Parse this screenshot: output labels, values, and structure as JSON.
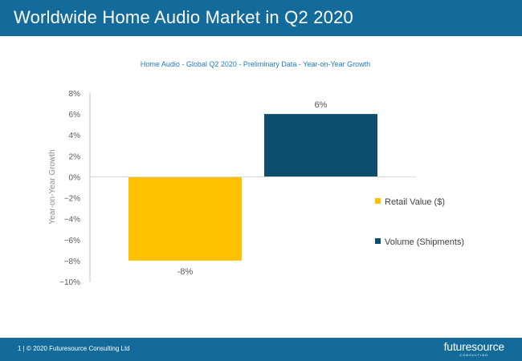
{
  "slide": {
    "title": "Worldwide Home Audio Market in Q2 2020",
    "footer_text": "1  |  © 2020 Futuresource Consulting Ltd",
    "logo_text": "futuresource",
    "logo_sub": "CONSULTING"
  },
  "colors": {
    "header": "#136b9b",
    "retail": "#ffc000",
    "volume": "#0d4e6f",
    "axis_text": "#595959",
    "subtitle": "#1f7bc0"
  },
  "chart_data": {
    "type": "bar",
    "title": "Home Audio - Global Q2 2020 - Preliminary Data - Year-on-Year Growth",
    "ylabel": "Year-on-Year Growth",
    "xlabel": "",
    "ylim": [
      -10,
      8
    ],
    "yticks": [
      8,
      6,
      4,
      2,
      0,
      -2,
      -4,
      -6,
      -8,
      -10
    ],
    "ytick_labels": [
      "8%",
      "6%",
      "4%",
      "2%",
      "0%",
      "−2%",
      "−4%",
      "−6%",
      "−8%",
      "−10%"
    ],
    "series": [
      {
        "name": "Retail Value ($)",
        "values": [
          -8
        ],
        "label": "-8%",
        "color": "#ffc000"
      },
      {
        "name": "Volume (Shipments)",
        "values": [
          6
        ],
        "label": "6%",
        "color": "#0d4e6f"
      }
    ],
    "legend": "right"
  }
}
